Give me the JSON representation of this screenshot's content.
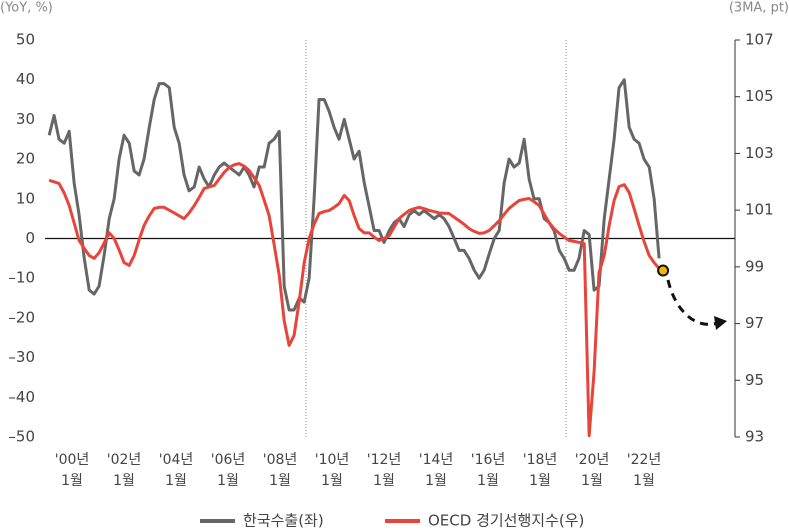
{
  "chart_data": {
    "type": "line",
    "y_axis_label": "(YoY, %)",
    "y2_axis_label": "(3MA, pt)",
    "xlim": [
      1998.96,
      2025.5
    ],
    "ylim": [
      -50,
      50
    ],
    "y2lim": [
      93,
      107
    ],
    "yticks": [
      50,
      40,
      30,
      20,
      10,
      0,
      {
        "value": -10,
        "label": "–10"
      },
      {
        "value": -20,
        "label": "–20"
      },
      {
        "value": -30,
        "label": "–30"
      },
      {
        "value": -40,
        "label": "–40"
      },
      {
        "value": -50,
        "label": "–50"
      }
    ],
    "y2ticks": [
      107,
      105,
      103,
      101,
      99,
      97,
      95,
      93
    ],
    "xticks": [
      {
        "value": 2000,
        "label": "'00년\n1월"
      },
      {
        "value": 2002,
        "label": "'02년\n1월"
      },
      {
        "value": 2004,
        "label": "'04년\n1월"
      },
      {
        "value": 2006,
        "label": "'06년\n1월"
      },
      {
        "value": 2008,
        "label": "'08년\n1월"
      },
      {
        "value": 2010,
        "label": "'10년\n1월"
      },
      {
        "value": 2012,
        "label": "'12년\n1월"
      },
      {
        "value": 2014,
        "label": "'14년\n1월"
      },
      {
        "value": 2016,
        "label": "'16년\n1월"
      },
      {
        "value": 2018,
        "label": "'18년\n1월"
      },
      {
        "value": 2020,
        "label": "'20년\n1월"
      },
      {
        "value": 2022,
        "label": "'22년\n1월"
      }
    ],
    "vlines": [
      2009.0,
      2019.0
    ],
    "legend": "bottom",
    "x": [
      1999.12,
      1999.31,
      1999.5,
      1999.7,
      1999.89,
      2000.08,
      2000.27,
      2000.47,
      2000.66,
      2000.85,
      2001.04,
      2001.24,
      2001.43,
      2001.62,
      2001.81,
      2002.0,
      2002.2,
      2002.39,
      2002.58,
      2002.77,
      2002.97,
      2003.16,
      2003.35,
      2003.54,
      2003.74,
      2003.93,
      2004.12,
      2004.31,
      2004.5,
      2004.7,
      2004.89,
      2005.08,
      2005.27,
      2005.47,
      2005.66,
      2005.85,
      2006.04,
      2006.24,
      2006.43,
      2006.62,
      2006.81,
      2007.0,
      2007.2,
      2007.39,
      2007.58,
      2007.77,
      2007.97,
      2008.16,
      2008.35,
      2008.54,
      2008.74,
      2008.93,
      2009.12,
      2009.31,
      2009.5,
      2009.7,
      2009.89,
      2010.08,
      2010.27,
      2010.47,
      2010.66,
      2010.85,
      2011.04,
      2011.24,
      2011.43,
      2011.62,
      2011.81,
      2012.0,
      2012.2,
      2012.39,
      2012.58,
      2012.77,
      2012.97,
      2013.16,
      2013.35,
      2013.54,
      2013.74,
      2013.93,
      2014.12,
      2014.31,
      2014.5,
      2014.7,
      2014.89,
      2015.08,
      2015.27,
      2015.47,
      2015.66,
      2015.85,
      2016.04,
      2016.24,
      2016.43,
      2016.62,
      2016.81,
      2017.0,
      2017.2,
      2017.39,
      2017.58,
      2017.77,
      2017.97,
      2018.16,
      2018.35,
      2018.54,
      2018.74,
      2018.93,
      2019.12,
      2019.31,
      2019.5,
      2019.7,
      2019.89,
      2020.08,
      2020.27,
      2020.47,
      2020.66,
      2020.85,
      2021.04,
      2021.24,
      2021.43,
      2021.62,
      2021.81,
      2022.0,
      2022.2,
      2022.39,
      2022.58
    ],
    "series": [
      {
        "name": "한국수출(좌)",
        "color": "#666666",
        "axis": "y",
        "values": [
          26,
          31,
          25,
          24,
          27,
          14,
          6,
          -5,
          -13,
          -14,
          -12,
          -4,
          5,
          10,
          20,
          26,
          24,
          17,
          16,
          20,
          28,
          35,
          39,
          39,
          38,
          28,
          24,
          16,
          12,
          13,
          18,
          15,
          13,
          16,
          18,
          19,
          18,
          17,
          16,
          18,
          16,
          13,
          18,
          18,
          24,
          25,
          27,
          -12,
          -18,
          -18,
          -15,
          -16,
          -10,
          10,
          35,
          35,
          32,
          28,
          25,
          30,
          25,
          20,
          22,
          14,
          8,
          2,
          2,
          -1,
          2,
          4,
          5,
          3,
          6,
          7,
          6,
          7,
          6,
          5,
          6,
          5,
          3,
          0,
          -3,
          -3,
          -5,
          -8,
          -10,
          -8,
          -4,
          0,
          2,
          14,
          20,
          18,
          19,
          25,
          15,
          10,
          10,
          5,
          4,
          2,
          -3,
          -5,
          -8,
          -8,
          -5,
          2,
          1,
          -13,
          -12,
          5,
          15,
          25,
          38,
          40,
          28,
          25,
          24,
          20,
          18,
          10,
          -5
        ]
      },
      {
        "name": "OECD 경기선행지수(우)",
        "color": "#e8443a",
        "axis": "y2",
        "values": [
          102.05,
          102.0,
          101.94,
          101.6,
          101.16,
          100.55,
          99.93,
          99.65,
          99.4,
          99.3,
          99.5,
          99.85,
          100.2,
          100.0,
          99.6,
          99.15,
          99.05,
          99.4,
          99.95,
          100.46,
          100.8,
          101.06,
          101.1,
          101.1,
          101.0,
          100.9,
          100.8,
          100.7,
          100.9,
          101.16,
          101.45,
          101.76,
          101.82,
          101.87,
          102.1,
          102.33,
          102.5,
          102.6,
          102.64,
          102.55,
          102.4,
          102.15,
          101.87,
          101.35,
          100.81,
          99.8,
          98.7,
          97.1,
          96.23,
          96.58,
          97.8,
          99.15,
          100.0,
          100.5,
          100.88,
          100.95,
          100.99,
          101.1,
          101.23,
          101.52,
          101.34,
          100.81,
          100.35,
          100.2,
          100.2,
          100.05,
          99.93,
          100.0,
          100.1,
          100.4,
          100.7,
          100.85,
          100.99,
          101.05,
          101.1,
          101.05,
          100.99,
          100.95,
          100.9,
          100.89,
          100.88,
          100.75,
          100.63,
          100.5,
          100.35,
          100.25,
          100.18,
          100.2,
          100.28,
          100.45,
          100.63,
          100.85,
          101.06,
          101.2,
          101.34,
          101.38,
          101.41,
          101.3,
          101.16,
          100.86,
          100.56,
          100.35,
          100.18,
          100.05,
          99.93,
          99.9,
          99.86,
          99.82,
          93.05,
          95.3,
          98.8,
          99.4,
          100.46,
          101.34,
          101.83,
          101.9,
          101.62,
          101.05,
          100.46,
          99.9,
          99.4,
          99.15,
          98.94
        ]
      }
    ]
  }
}
